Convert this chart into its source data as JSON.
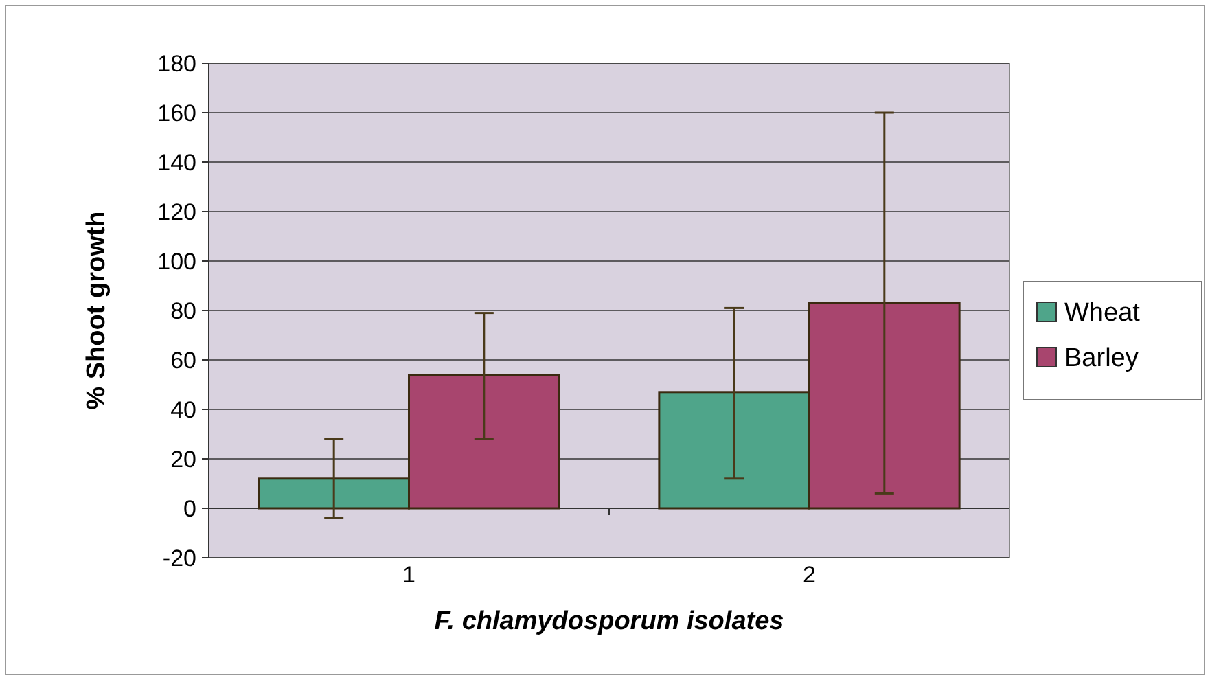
{
  "chart_data": {
    "type": "bar",
    "xlabel": "F. chlamydosporum isolates",
    "ylabel": "% Shoot growth",
    "categories": [
      "1",
      "2"
    ],
    "series": [
      {
        "name": "Wheat",
        "color": "#4fa58a",
        "values": [
          12,
          47
        ],
        "errors": [
          [
            -4,
            28
          ],
          [
            12,
            81
          ]
        ]
      },
      {
        "name": "Barley",
        "color": "#a8456e",
        "values": [
          54,
          83
        ],
        "errors": [
          [
            28,
            79
          ],
          [
            6,
            160
          ]
        ]
      }
    ],
    "ylim": [
      -20,
      180
    ],
    "yticks": [
      -20,
      0,
      20,
      40,
      60,
      80,
      100,
      120,
      140,
      160,
      180
    ],
    "grid": "y",
    "legend": "right"
  }
}
